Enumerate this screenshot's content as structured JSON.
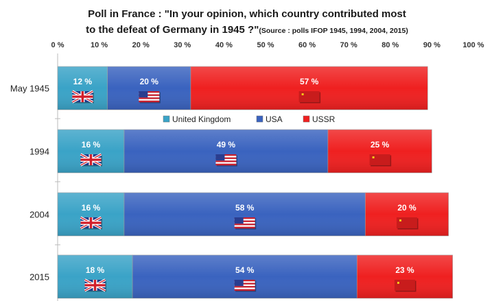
{
  "chart_data": {
    "type": "bar",
    "orientation": "horizontal",
    "stacked": true,
    "title_line1": "Poll in France : \"In your opinion, which country contributed most",
    "title_line2": "to the defeat of Germany in 1945 ?\"",
    "source_note": "(Source : polls IFOP 1945, 1994, 2004, 2015)",
    "categories": [
      "May 1945",
      "1994",
      "2004",
      "2015"
    ],
    "series": [
      {
        "name": "United Kingdom",
        "color": "#3aa3c7",
        "flag": "uk-flag-icon",
        "values": [
          12,
          16,
          16,
          18
        ]
      },
      {
        "name": "USA",
        "color": "#3a63bf",
        "flag": "us-flag-icon",
        "values": [
          20,
          49,
          58,
          54
        ]
      },
      {
        "name": "USSR",
        "color": "#ef2020",
        "flag": "ussr-flag-icon",
        "values": [
          57,
          25,
          20,
          23
        ]
      }
    ],
    "value_labels": [
      [
        "12 %",
        "20 %",
        "57 %"
      ],
      [
        "16 %",
        "49 %",
        "25 %"
      ],
      [
        "16 %",
        "58 %",
        "20 %"
      ],
      [
        "18 %",
        "54 %",
        "23 %"
      ]
    ],
    "xticks": [
      "0 %",
      "10 %",
      "20 %",
      "30 %",
      "40 %",
      "50 %",
      "60 %",
      "70 %",
      "80 %",
      "90 %",
      "100 %"
    ],
    "xlim": [
      0,
      100
    ],
    "legend_position": "top-center, between first and second bar",
    "grid": false
  }
}
